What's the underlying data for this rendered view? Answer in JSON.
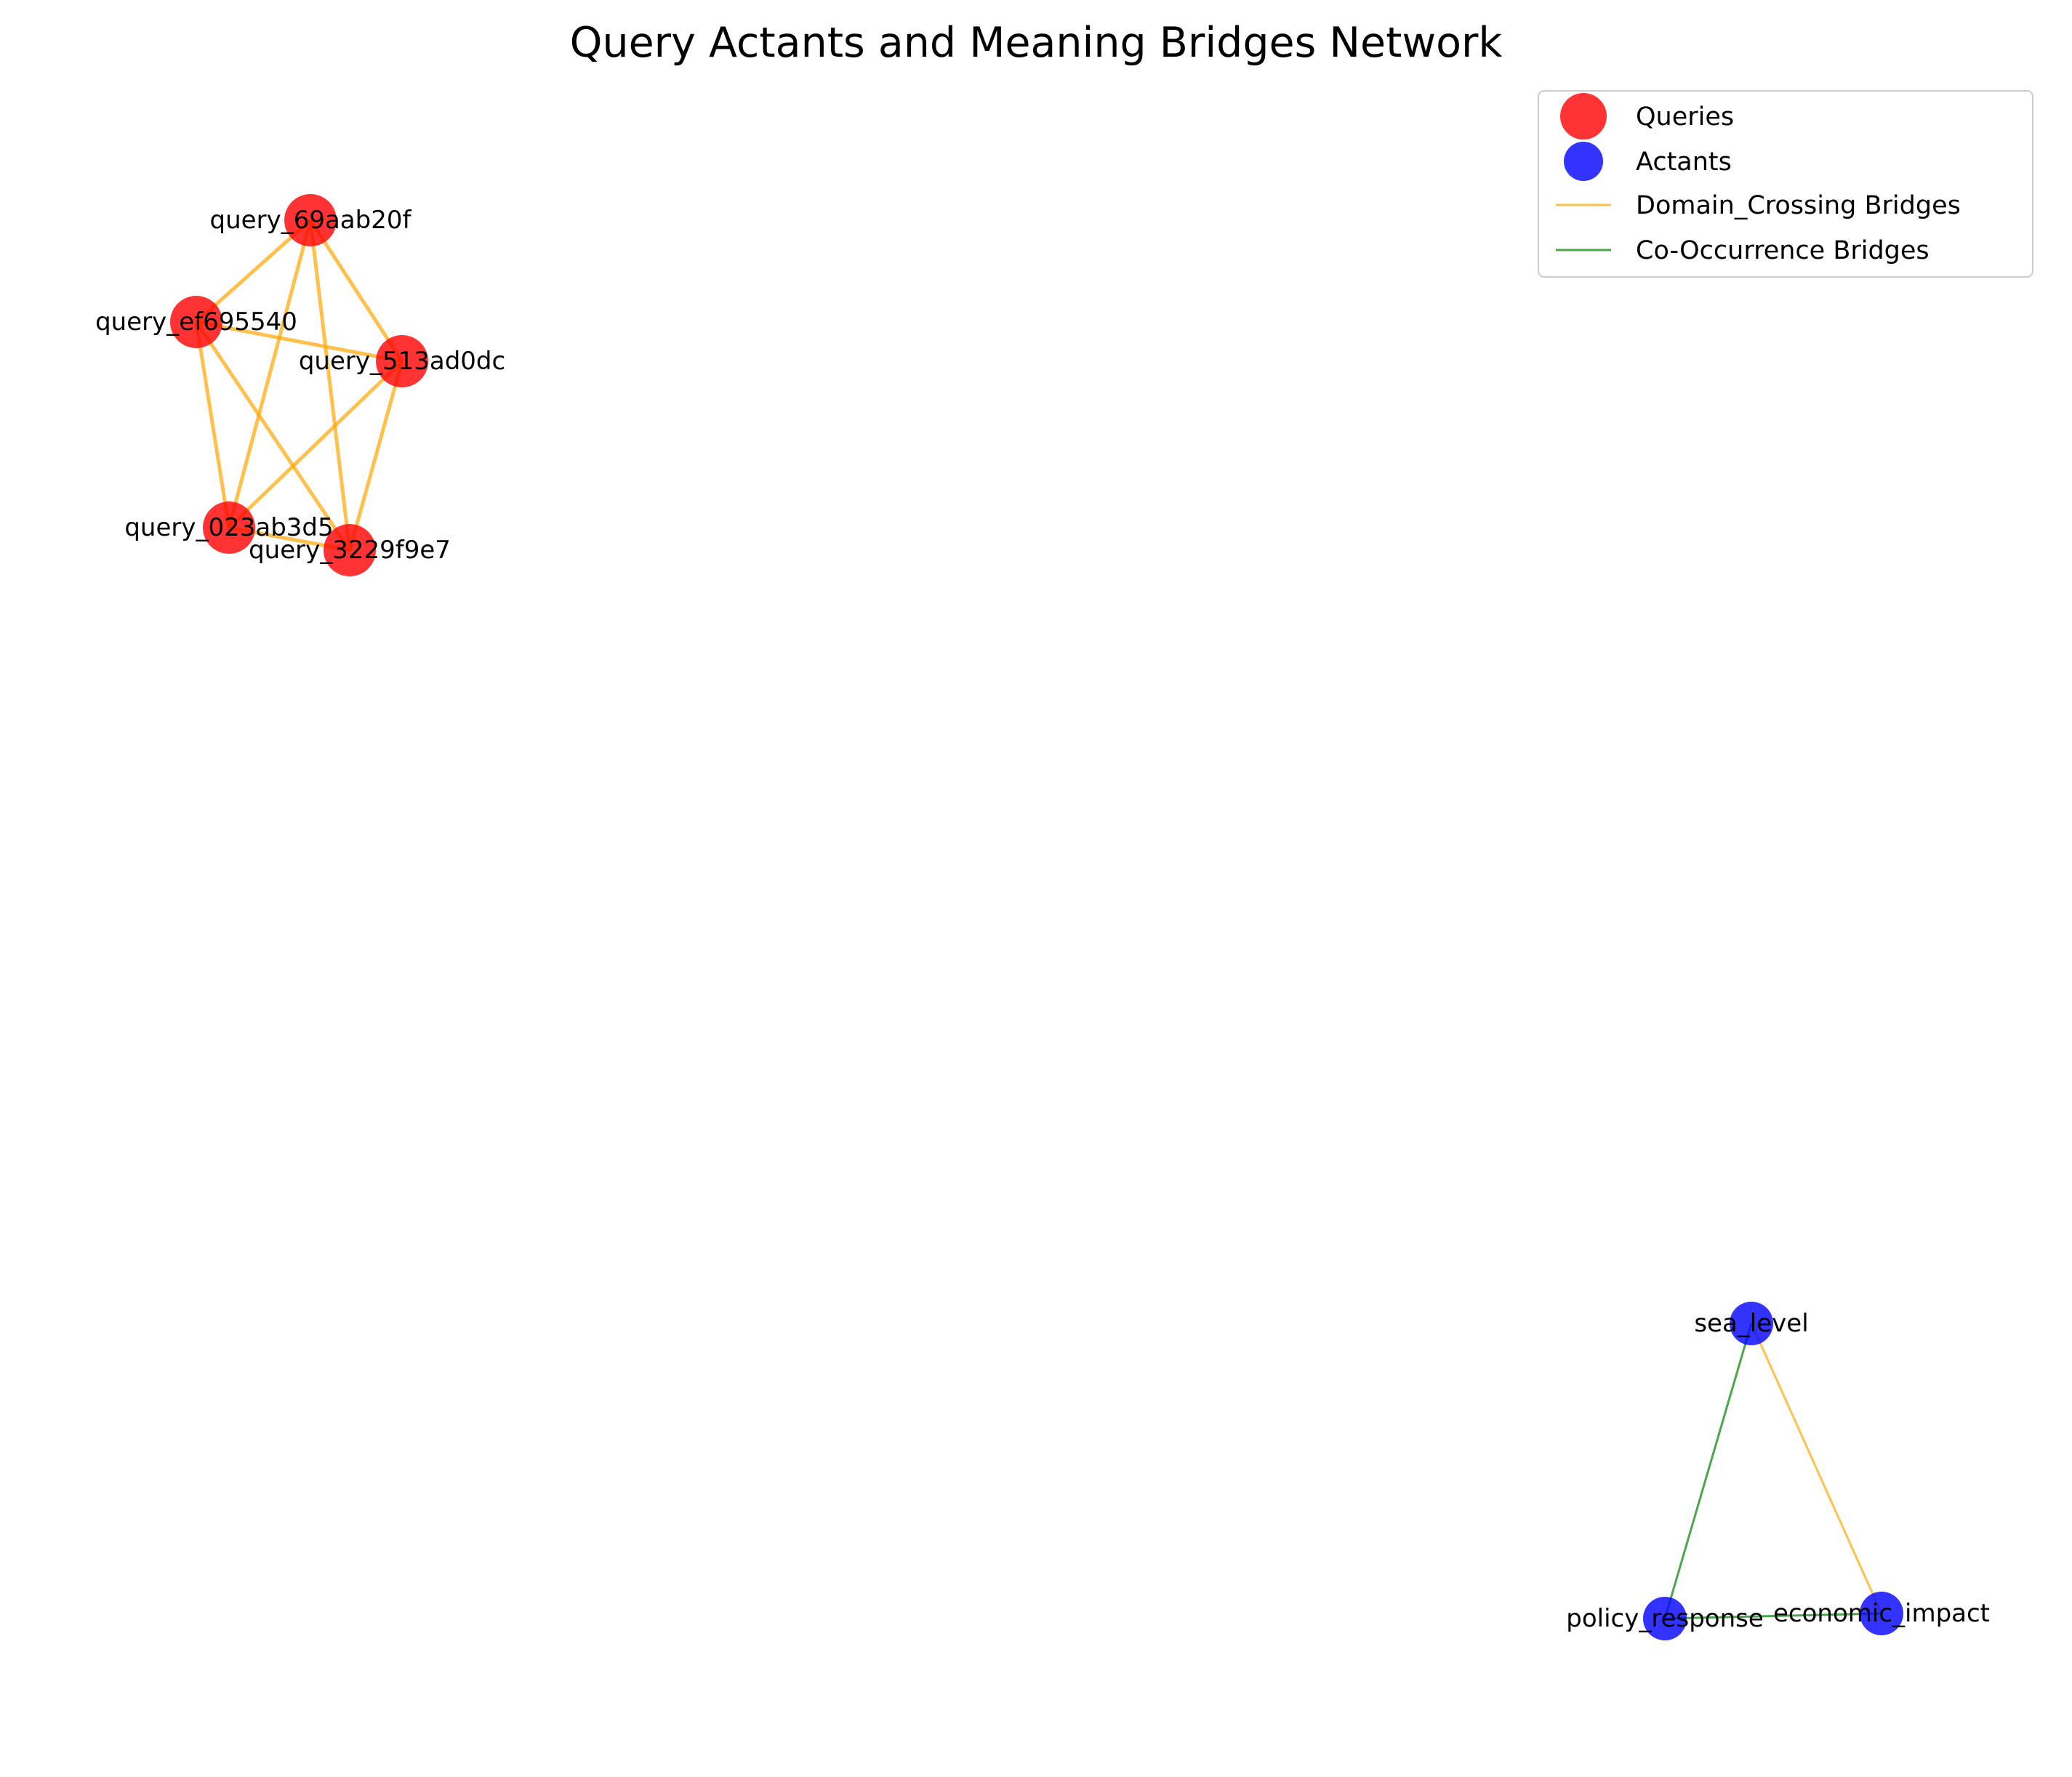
{
  "title": "Query Actants and Meaning Bridges Network",
  "colors": {
    "query_node": "#ff0000",
    "actant_node": "#0000ff",
    "domain_crossing_edge": "#ffa500",
    "co_occurrence_edge": "#008000"
  },
  "legend": {
    "queries": "Queries",
    "actants": "Actants",
    "domain_crossing": "Domain_Crossing Bridges",
    "co_occurrence": "Co-Occurrence Bridges"
  },
  "nodes": [
    {
      "id": "query_69aab20f",
      "label": "query_69aab20f",
      "kind": "query"
    },
    {
      "id": "query_ef695540",
      "label": "query_ef695540",
      "kind": "query"
    },
    {
      "id": "query_513ad0dc",
      "label": "query_513ad0dc",
      "kind": "query"
    },
    {
      "id": "query_023ab3d5",
      "label": "query_023ab3d5",
      "kind": "query"
    },
    {
      "id": "query_3229f9e7",
      "label": "query_3229f9e7",
      "kind": "query"
    },
    {
      "id": "sea_level",
      "label": "sea_level",
      "kind": "actant"
    },
    {
      "id": "policy_response",
      "label": "policy_response",
      "kind": "actant"
    },
    {
      "id": "economic_impact",
      "label": "economic_impact",
      "kind": "actant"
    }
  ],
  "edges": [
    {
      "source": "query_69aab20f",
      "target": "query_ef695540",
      "type": "domain_crossing"
    },
    {
      "source": "query_69aab20f",
      "target": "query_513ad0dc",
      "type": "domain_crossing"
    },
    {
      "source": "query_69aab20f",
      "target": "query_023ab3d5",
      "type": "domain_crossing"
    },
    {
      "source": "query_69aab20f",
      "target": "query_3229f9e7",
      "type": "domain_crossing"
    },
    {
      "source": "query_ef695540",
      "target": "query_513ad0dc",
      "type": "domain_crossing"
    },
    {
      "source": "query_ef695540",
      "target": "query_023ab3d5",
      "type": "domain_crossing"
    },
    {
      "source": "query_ef695540",
      "target": "query_3229f9e7",
      "type": "domain_crossing"
    },
    {
      "source": "query_513ad0dc",
      "target": "query_023ab3d5",
      "type": "domain_crossing"
    },
    {
      "source": "query_513ad0dc",
      "target": "query_3229f9e7",
      "type": "domain_crossing"
    },
    {
      "source": "query_023ab3d5",
      "target": "query_3229f9e7",
      "type": "domain_crossing"
    },
    {
      "source": "sea_level",
      "target": "economic_impact",
      "type": "domain_crossing"
    },
    {
      "source": "sea_level",
      "target": "policy_response",
      "type": "co_occurrence"
    },
    {
      "source": "policy_response",
      "target": "economic_impact",
      "type": "co_occurrence"
    }
  ]
}
